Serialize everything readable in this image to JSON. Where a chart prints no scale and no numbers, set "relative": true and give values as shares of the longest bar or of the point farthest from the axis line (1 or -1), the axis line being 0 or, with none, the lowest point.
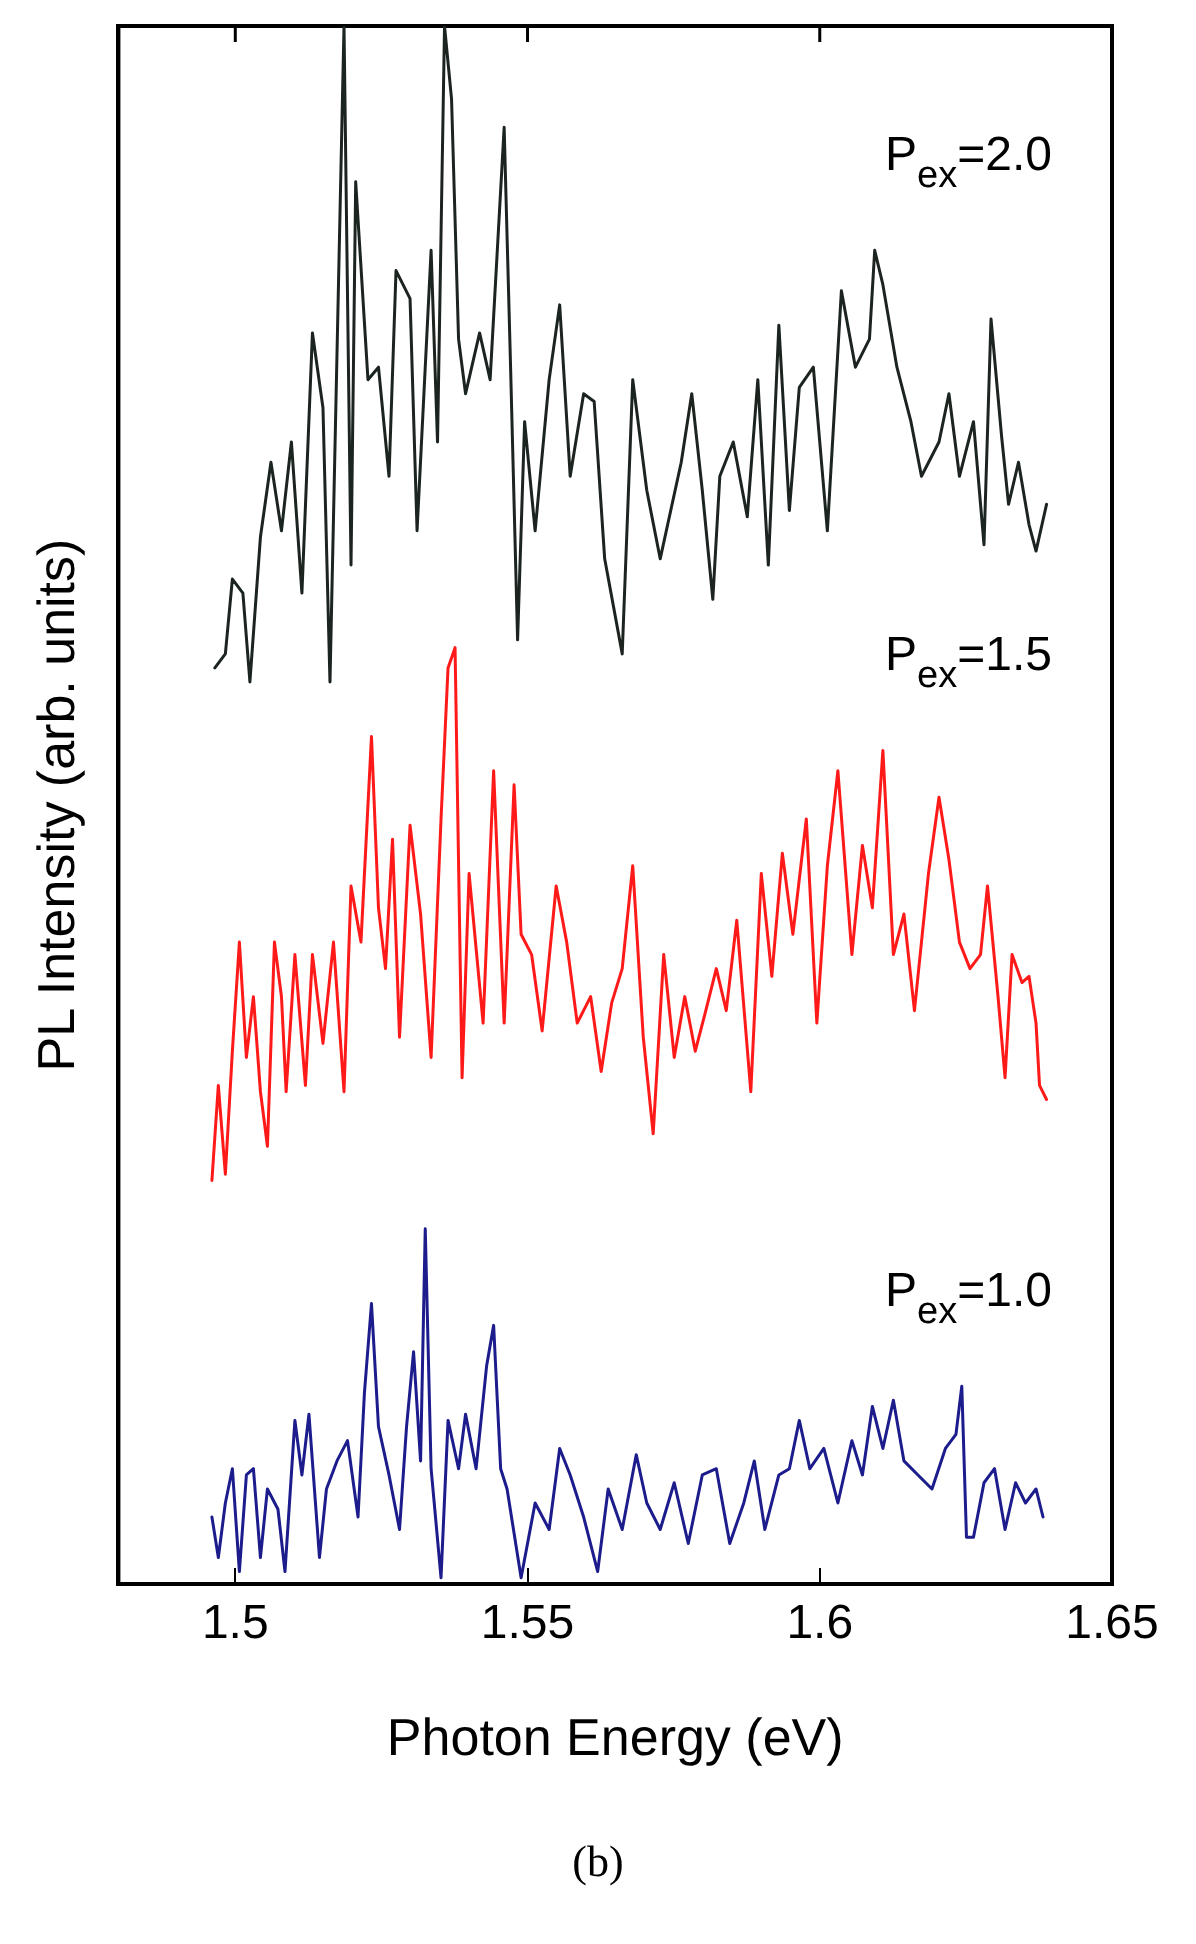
{
  "chart_data": {
    "type": "line",
    "xlabel": "Photon Energy (eV)",
    "ylabel": "PL Intensity (arb. units)",
    "relative": true,
    "xlim": [
      1.48,
      1.65
    ],
    "xticks": [
      1.5,
      1.55,
      1.6,
      1.65
    ],
    "grid": false,
    "legend": false,
    "marker": "none",
    "line_style": "solid",
    "annotations": [
      "(b)"
    ],
    "series": [
      {
        "name": "P$_{ex}$=2.0",
        "color": "#1c2420",
        "x": [
          1.4965,
          1.4983,
          1.4995,
          1.5013,
          1.5025,
          1.5043,
          1.5061,
          1.5079,
          1.5096,
          1.5114,
          1.5132,
          1.515,
          1.5162,
          1.5186,
          1.5198,
          1.5206,
          1.5227,
          1.5245,
          1.5263,
          1.5275,
          1.5299,
          1.5311,
          1.5335,
          1.5346,
          1.5358,
          1.537,
          1.5382,
          1.5394,
          1.5418,
          1.5436,
          1.546,
          1.5471,
          1.5483,
          1.5495,
          1.5513,
          1.5537,
          1.5555,
          1.5573,
          1.5596,
          1.5614,
          1.5632,
          1.5662,
          1.568,
          1.5704,
          1.5727,
          1.5763,
          1.5781,
          1.5799,
          1.5817,
          1.5829,
          1.5852,
          1.5876,
          1.5894,
          1.5912,
          1.593,
          1.5948,
          1.5965,
          1.5989,
          1.6013,
          1.6037,
          1.6061,
          1.6085,
          1.6094,
          1.6108,
          1.6132,
          1.6156,
          1.6174,
          1.6204,
          1.6221,
          1.6239,
          1.6263,
          1.6281,
          1.6293,
          1.6311,
          1.6323,
          1.634,
          1.6358,
          1.637,
          1.6388
        ],
        "values": [
          0.588,
          0.597,
          0.645,
          0.636,
          0.579,
          0.672,
          0.72,
          0.676,
          0.733,
          0.636,
          0.803,
          0.755,
          0.579,
          1.0,
          0.654,
          0.9,
          0.773,
          0.781,
          0.711,
          0.843,
          0.825,
          0.676,
          0.856,
          0.733,
          1.0,
          0.953,
          0.799,
          0.764,
          0.803,
          0.773,
          0.935,
          0.781,
          0.606,
          0.746,
          0.676,
          0.773,
          0.821,
          0.711,
          0.764,
          0.759,
          0.658,
          0.597,
          0.773,
          0.702,
          0.658,
          0.72,
          0.764,
          0.702,
          0.632,
          0.711,
          0.733,
          0.685,
          0.773,
          0.654,
          0.808,
          0.689,
          0.768,
          0.781,
          0.676,
          0.83,
          0.781,
          0.799,
          0.856,
          0.834,
          0.781,
          0.746,
          0.711,
          0.733,
          0.764,
          0.711,
          0.746,
          0.667,
          0.812,
          0.737,
          0.693,
          0.72,
          0.68,
          0.663,
          0.693
        ]
      },
      {
        "name": "P$_{ex}$=1.5",
        "color": "#ff1a1a",
        "x": [
          1.496,
          1.4971,
          1.4983,
          1.4995,
          1.5007,
          1.5019,
          1.5031,
          1.5043,
          1.5055,
          1.5067,
          1.5079,
          1.5087,
          1.5102,
          1.512,
          1.5132,
          1.515,
          1.5168,
          1.5186,
          1.5198,
          1.5215,
          1.5233,
          1.5245,
          1.5257,
          1.5269,
          1.5281,
          1.5299,
          1.5317,
          1.5335,
          1.5352,
          1.5364,
          1.5376,
          1.5388,
          1.54,
          1.5424,
          1.5442,
          1.546,
          1.5477,
          1.5489,
          1.5507,
          1.5525,
          1.5549,
          1.5567,
          1.5585,
          1.5608,
          1.5626,
          1.5644,
          1.5662,
          1.568,
          1.5698,
          1.5715,
          1.5733,
          1.5751,
          1.5769,
          1.5787,
          1.5805,
          1.5823,
          1.584,
          1.5858,
          1.5882,
          1.59,
          1.5918,
          1.5936,
          1.5954,
          1.5977,
          1.5995,
          1.6013,
          1.6031,
          1.6055,
          1.6073,
          1.609,
          1.6108,
          1.6126,
          1.6144,
          1.6162,
          1.6186,
          1.6204,
          1.6221,
          1.6239,
          1.6257,
          1.6275,
          1.6287,
          1.6305,
          1.6317,
          1.6329,
          1.6346,
          1.6358,
          1.637,
          1.6376,
          1.6388
        ],
        "values": [
          0.259,
          0.32,
          0.263,
          0.342,
          0.412,
          0.338,
          0.377,
          0.316,
          0.281,
          0.412,
          0.377,
          0.316,
          0.404,
          0.32,
          0.404,
          0.347,
          0.412,
          0.316,
          0.448,
          0.412,
          0.544,
          0.434,
          0.395,
          0.478,
          0.351,
          0.487,
          0.43,
          0.338,
          0.491,
          0.588,
          0.601,
          0.325,
          0.456,
          0.36,
          0.522,
          0.36,
          0.513,
          0.417,
          0.404,
          0.355,
          0.448,
          0.412,
          0.36,
          0.377,
          0.329,
          0.373,
          0.395,
          0.461,
          0.351,
          0.289,
          0.404,
          0.338,
          0.377,
          0.342,
          0.368,
          0.395,
          0.368,
          0.426,
          0.316,
          0.456,
          0.39,
          0.469,
          0.417,
          0.491,
          0.36,
          0.461,
          0.522,
          0.404,
          0.474,
          0.434,
          0.535,
          0.404,
          0.43,
          0.368,
          0.456,
          0.505,
          0.465,
          0.412,
          0.395,
          0.404,
          0.448,
          0.377,
          0.325,
          0.404,
          0.386,
          0.39,
          0.36,
          0.32,
          0.311
        ]
      },
      {
        "name": "P$_{ex}$=1.0",
        "color": "#1c1c8c",
        "x": [
          1.496,
          1.4971,
          1.4983,
          1.4995,
          1.5007,
          1.5019,
          1.5031,
          1.5043,
          1.5055,
          1.5073,
          1.5085,
          1.5102,
          1.5114,
          1.5126,
          1.5144,
          1.5156,
          1.5174,
          1.5192,
          1.521,
          1.5221,
          1.5233,
          1.5245,
          1.5263,
          1.5281,
          1.5293,
          1.5305,
          1.5317,
          1.5325,
          1.5335,
          1.5352,
          1.5364,
          1.5382,
          1.5394,
          1.5412,
          1.543,
          1.5442,
          1.5454,
          1.5465,
          1.5489,
          1.5513,
          1.5537,
          1.5555,
          1.5573,
          1.5596,
          1.562,
          1.5638,
          1.5662,
          1.5686,
          1.5704,
          1.5727,
          1.5751,
          1.5775,
          1.5799,
          1.5823,
          1.5846,
          1.587,
          1.5888,
          1.5906,
          1.593,
          1.5948,
          1.5965,
          1.5983,
          1.6007,
          1.6031,
          1.6055,
          1.6073,
          1.609,
          1.6108,
          1.6126,
          1.6144,
          1.6168,
          1.6192,
          1.6215,
          1.6233,
          1.6243,
          1.6251,
          1.6263,
          1.6281,
          1.6299,
          1.6317,
          1.6335,
          1.6352,
          1.637,
          1.6382
        ],
        "values": [
          0.043,
          0.017,
          0.052,
          0.074,
          0.008,
          0.07,
          0.074,
          0.017,
          0.061,
          0.048,
          0.008,
          0.105,
          0.07,
          0.109,
          0.017,
          0.061,
          0.079,
          0.092,
          0.043,
          0.123,
          0.18,
          0.101,
          0.07,
          0.035,
          0.101,
          0.149,
          0.079,
          0.228,
          0.074,
          0.004,
          0.105,
          0.074,
          0.109,
          0.074,
          0.14,
          0.166,
          0.074,
          0.061,
          0.004,
          0.052,
          0.035,
          0.087,
          0.07,
          0.043,
          0.008,
          0.061,
          0.035,
          0.083,
          0.052,
          0.035,
          0.065,
          0.026,
          0.07,
          0.074,
          0.026,
          0.052,
          0.079,
          0.035,
          0.07,
          0.074,
          0.105,
          0.074,
          0.087,
          0.052,
          0.092,
          0.07,
          0.114,
          0.087,
          0.118,
          0.079,
          0.07,
          0.061,
          0.087,
          0.096,
          0.127,
          0.03,
          0.03,
          0.065,
          0.074,
          0.035,
          0.065,
          0.052,
          0.061,
          0.043
        ]
      }
    ]
  }
}
